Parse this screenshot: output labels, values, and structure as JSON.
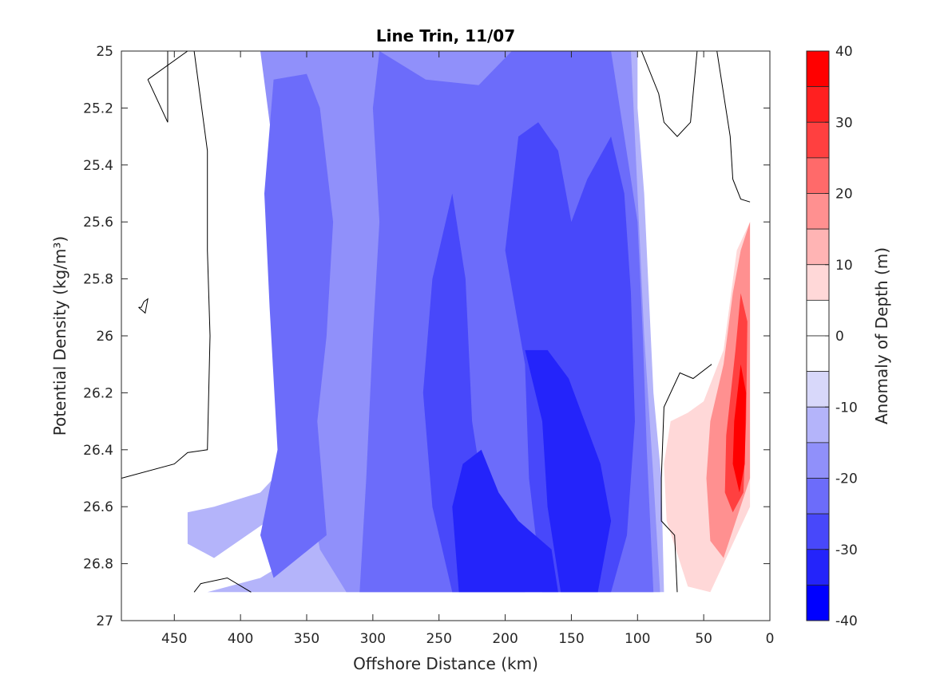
{
  "chart_data": {
    "type": "heatmap",
    "title": "Line Trin, 11/07",
    "xlabel": "Offshore Distance (km)",
    "ylabel": "Potential Density (kg/m³)",
    "xlim": [
      490,
      0
    ],
    "ylim": [
      25,
      27
    ],
    "x_ticks": [
      450,
      400,
      350,
      300,
      250,
      200,
      150,
      100,
      50,
      0
    ],
    "y_ticks": [
      25,
      25.2,
      25.4,
      25.6,
      25.8,
      26,
      26.2,
      26.4,
      26.6,
      26.8,
      27
    ],
    "colorbar": {
      "label": "Anomaly of Depth (m)",
      "range": [
        -40,
        40
      ],
      "ticks": [
        40,
        30,
        20,
        10,
        0,
        -10,
        -20,
        -30,
        -40
      ],
      "levels": [
        {
          "lo": 35,
          "hi": 40,
          "color": "#ff0000"
        },
        {
          "lo": 30,
          "hi": 35,
          "color": "#ff2020"
        },
        {
          "lo": 25,
          "hi": 30,
          "color": "#ff4040"
        },
        {
          "lo": 20,
          "hi": 25,
          "color": "#ff6a6a"
        },
        {
          "lo": 15,
          "hi": 20,
          "color": "#ff9090"
        },
        {
          "lo": 10,
          "hi": 15,
          "color": "#ffb4b4"
        },
        {
          "lo": 5,
          "hi": 10,
          "color": "#ffd8d8"
        },
        {
          "lo": 0,
          "hi": 5,
          "color": "#ffffff"
        },
        {
          "lo": -5,
          "hi": 0,
          "color": "#ffffff"
        },
        {
          "lo": -10,
          "hi": -5,
          "color": "#d8d8fa"
        },
        {
          "lo": -15,
          "hi": -10,
          "color": "#b4b4fa"
        },
        {
          "lo": -20,
          "hi": -15,
          "color": "#9090fa"
        },
        {
          "lo": -25,
          "hi": -20,
          "color": "#6c6cfa"
        },
        {
          "lo": -30,
          "hi": -25,
          "color": "#4848fa"
        },
        {
          "lo": -35,
          "hi": -30,
          "color": "#2424fa"
        },
        {
          "lo": -40,
          "hi": -35,
          "color": "#0000ff"
        }
      ]
    },
    "regions": [
      {
        "level": -10,
        "polygon": [
          [
            435,
            25
          ],
          [
            385,
            25
          ],
          [
            380,
            25.15
          ],
          [
            365,
            25.4
          ],
          [
            360,
            25.7
          ],
          [
            355,
            26.0
          ],
          [
            350,
            26.3
          ],
          [
            345,
            26.6
          ],
          [
            360,
            26.78
          ],
          [
            385,
            26.85
          ],
          [
            425,
            26.9
          ],
          [
            385,
            26.9
          ],
          [
            385,
            26.9
          ],
          [
            300,
            26.9
          ],
          [
            300,
            26.9
          ],
          [
            245,
            26.9
          ],
          [
            150,
            26.9
          ],
          [
            80,
            26.9
          ],
          [
            82,
            26.5
          ],
          [
            88,
            26.2
          ],
          [
            92,
            25.8
          ],
          [
            95,
            25.5
          ],
          [
            100,
            25.2
          ],
          [
            100,
            25
          ],
          [
            300,
            25
          ]
        ]
      },
      {
        "level": -10,
        "polygon": [
          [
            440,
            26.62
          ],
          [
            420,
            26.6
          ],
          [
            385,
            26.55
          ],
          [
            365,
            26.45
          ],
          [
            370,
            26.62
          ],
          [
            395,
            26.7
          ],
          [
            420,
            26.78
          ],
          [
            440,
            26.73
          ]
        ]
      },
      {
        "level": -15,
        "polygon": [
          [
            420,
            25
          ],
          [
            385,
            25
          ],
          [
            378,
            25.25
          ],
          [
            368,
            25.6
          ],
          [
            362,
            25.95
          ],
          [
            358,
            26.2
          ],
          [
            350,
            26.5
          ],
          [
            340,
            26.75
          ],
          [
            320,
            26.9
          ],
          [
            150,
            26.9
          ],
          [
            83,
            26.9
          ],
          [
            88,
            26.5
          ],
          [
            95,
            26.0
          ],
          [
            100,
            25.5
          ],
          [
            105,
            25.0
          ]
        ]
      },
      {
        "level": -20,
        "polygon": [
          [
            375,
            25.1
          ],
          [
            350,
            25.08
          ],
          [
            340,
            25.2
          ],
          [
            330,
            25.6
          ],
          [
            335,
            26.0
          ],
          [
            342,
            26.3
          ],
          [
            335,
            26.7
          ],
          [
            375,
            26.85
          ],
          [
            385,
            26.7
          ],
          [
            372,
            26.4
          ],
          [
            378,
            25.9
          ],
          [
            382,
            25.5
          ]
        ]
      },
      {
        "level": -20,
        "polygon": [
          [
            295,
            25
          ],
          [
            260,
            25.1
          ],
          [
            220,
            25.12
          ],
          [
            195,
            25.0
          ],
          [
            150,
            25.0
          ],
          [
            120,
            25.0
          ],
          [
            110,
            25.3
          ],
          [
            100,
            25.6
          ],
          [
            96,
            26.0
          ],
          [
            93,
            26.4
          ],
          [
            88,
            26.9
          ],
          [
            310,
            26.9
          ],
          [
            305,
            26.5
          ],
          [
            300,
            26.0
          ],
          [
            295,
            25.6
          ],
          [
            300,
            25.2
          ]
        ]
      },
      {
        "level": -25,
        "polygon": [
          [
            240,
            25.5
          ],
          [
            230,
            25.8
          ],
          [
            225,
            26.3
          ],
          [
            215,
            26.6
          ],
          [
            195,
            26.7
          ],
          [
            185,
            26.9
          ],
          [
            240,
            26.9
          ],
          [
            255,
            26.6
          ],
          [
            262,
            26.2
          ],
          [
            255,
            25.8
          ]
        ]
      },
      {
        "level": -25,
        "polygon": [
          [
            190,
            25.3
          ],
          [
            175,
            25.25
          ],
          [
            160,
            25.35
          ],
          [
            150,
            25.6
          ],
          [
            138,
            25.45
          ],
          [
            120,
            25.3
          ],
          [
            110,
            25.5
          ],
          [
            105,
            25.85
          ],
          [
            102,
            26.3
          ],
          [
            108,
            26.7
          ],
          [
            120,
            26.9
          ],
          [
            172,
            26.9
          ],
          [
            182,
            26.5
          ],
          [
            185,
            26.1
          ],
          [
            200,
            25.7
          ]
        ]
      },
      {
        "level": -30,
        "polygon": [
          [
            218,
            26.4
          ],
          [
            205,
            26.55
          ],
          [
            190,
            26.65
          ],
          [
            165,
            26.75
          ],
          [
            160,
            26.9
          ],
          [
            235,
            26.9
          ],
          [
            240,
            26.6
          ],
          [
            232,
            26.45
          ]
        ]
      },
      {
        "level": -30,
        "polygon": [
          [
            205,
            26.05
          ],
          [
            185,
            26.05
          ],
          [
            172,
            26.3
          ],
          [
            168,
            26.6
          ],
          [
            158,
            26.9
          ],
          [
            130,
            26.9
          ],
          [
            120,
            26.65
          ],
          [
            128,
            26.45
          ],
          [
            140,
            26.3
          ],
          [
            152,
            26.15
          ],
          [
            168,
            26.05
          ]
        ]
      },
      {
        "level": 10,
        "polygon": [
          [
            75,
            26.3
          ],
          [
            62,
            26.27
          ],
          [
            50,
            26.23
          ],
          [
            35,
            26.05
          ],
          [
            25,
            25.7
          ],
          [
            15,
            25.6
          ],
          [
            15,
            26.6
          ],
          [
            35,
            26.8
          ],
          [
            45,
            26.9
          ],
          [
            62,
            26.88
          ],
          [
            78,
            26.65
          ],
          [
            80,
            26.45
          ]
        ]
      },
      {
        "level": 20,
        "polygon": [
          [
            45,
            26.3
          ],
          [
            35,
            26.1
          ],
          [
            28,
            25.85
          ],
          [
            22,
            25.7
          ],
          [
            15,
            25.6
          ],
          [
            15,
            26.5
          ],
          [
            35,
            26.78
          ],
          [
            45,
            26.72
          ],
          [
            48,
            26.5
          ]
        ]
      },
      {
        "level": 30,
        "polygon": [
          [
            33,
            26.35
          ],
          [
            26,
            26.05
          ],
          [
            22,
            25.85
          ],
          [
            17,
            25.95
          ],
          [
            18,
            26.3
          ],
          [
            20,
            26.55
          ],
          [
            28,
            26.62
          ],
          [
            34,
            26.55
          ]
        ]
      },
      {
        "level": 40,
        "polygon": [
          [
            27,
            26.3
          ],
          [
            22,
            26.1
          ],
          [
            18,
            26.2
          ],
          [
            19,
            26.45
          ],
          [
            23,
            26.55
          ],
          [
            28,
            26.45
          ]
        ]
      }
    ],
    "contours": [
      [
        [
          470,
          25.1
        ],
        [
          440,
          25.0
        ]
      ],
      [
        [
          455,
          25.0
        ],
        [
          455,
          25.25
        ],
        [
          470,
          25.1
        ]
      ],
      [
        [
          435,
          25.0
        ],
        [
          425,
          25.35
        ],
        [
          425,
          25.7
        ],
        [
          423,
          26.0
        ],
        [
          425,
          26.4
        ],
        [
          440,
          26.41
        ],
        [
          450,
          26.45
        ],
        [
          490,
          26.5
        ]
      ],
      [
        [
          392,
          26.9
        ],
        [
          410,
          26.85
        ],
        [
          430,
          26.87
        ],
        [
          435,
          26.9
        ]
      ],
      [
        [
          477,
          25.9
        ],
        [
          475,
          25.9
        ],
        [
          473,
          25.88
        ],
        [
          470,
          25.87
        ],
        [
          472,
          25.92
        ],
        [
          477,
          25.9
        ]
      ],
      [
        [
          97,
          25.0
        ],
        [
          84,
          25.15
        ],
        [
          80,
          25.25
        ],
        [
          70,
          25.3
        ],
        [
          60,
          25.25
        ],
        [
          55,
          25.0
        ]
      ],
      [
        [
          40,
          25.0
        ],
        [
          30,
          25.3
        ],
        [
          28,
          25.45
        ],
        [
          22,
          25.52
        ],
        [
          15,
          25.53
        ]
      ],
      [
        [
          44,
          26.1
        ],
        [
          58,
          26.15
        ],
        [
          68,
          26.13
        ],
        [
          80,
          26.25
        ],
        [
          82,
          26.5
        ],
        [
          82,
          26.65
        ],
        [
          72,
          26.7
        ],
        [
          70,
          26.9
        ]
      ]
    ]
  }
}
